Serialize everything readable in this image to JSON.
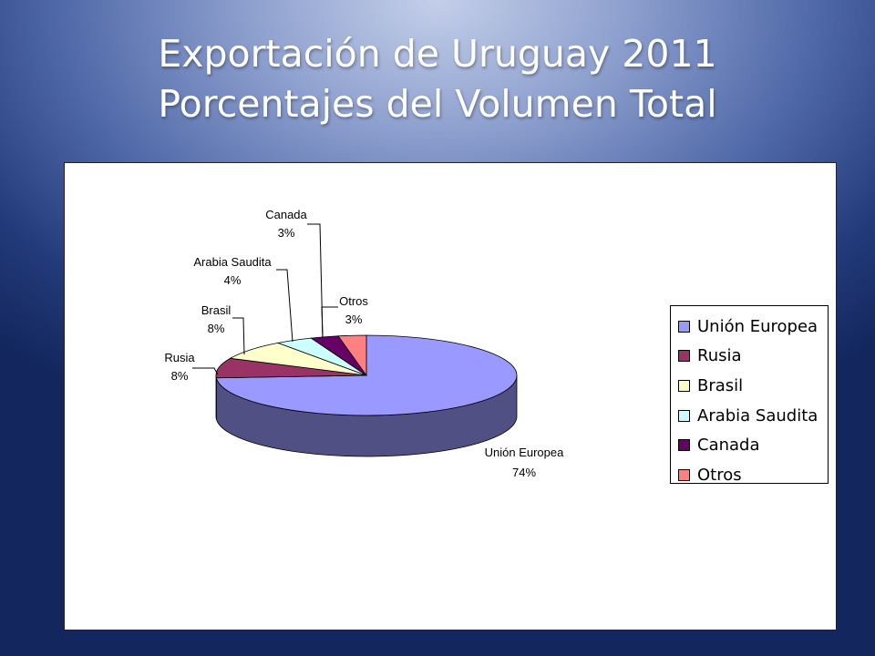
{
  "slide": {
    "title_line1": "Exportación de Uruguay 2011",
    "title_line2": "Porcentajes del Volumen Total"
  },
  "chart_data": {
    "type": "pie",
    "style": "3d",
    "title": "",
    "categories": [
      "Unión Europea",
      "Rusia",
      "Brasil",
      "Arabia Saudita",
      "Canada",
      "Otros"
    ],
    "values": [
      74,
      8,
      8,
      4,
      3,
      3
    ],
    "data_labels": [
      "74%",
      "8%",
      "8%",
      "4%",
      "3%",
      "3%"
    ],
    "colors": [
      "#9999ff",
      "#993366",
      "#ffffcc",
      "#ccffff",
      "#660066",
      "#ff8080"
    ],
    "legend": "right"
  }
}
